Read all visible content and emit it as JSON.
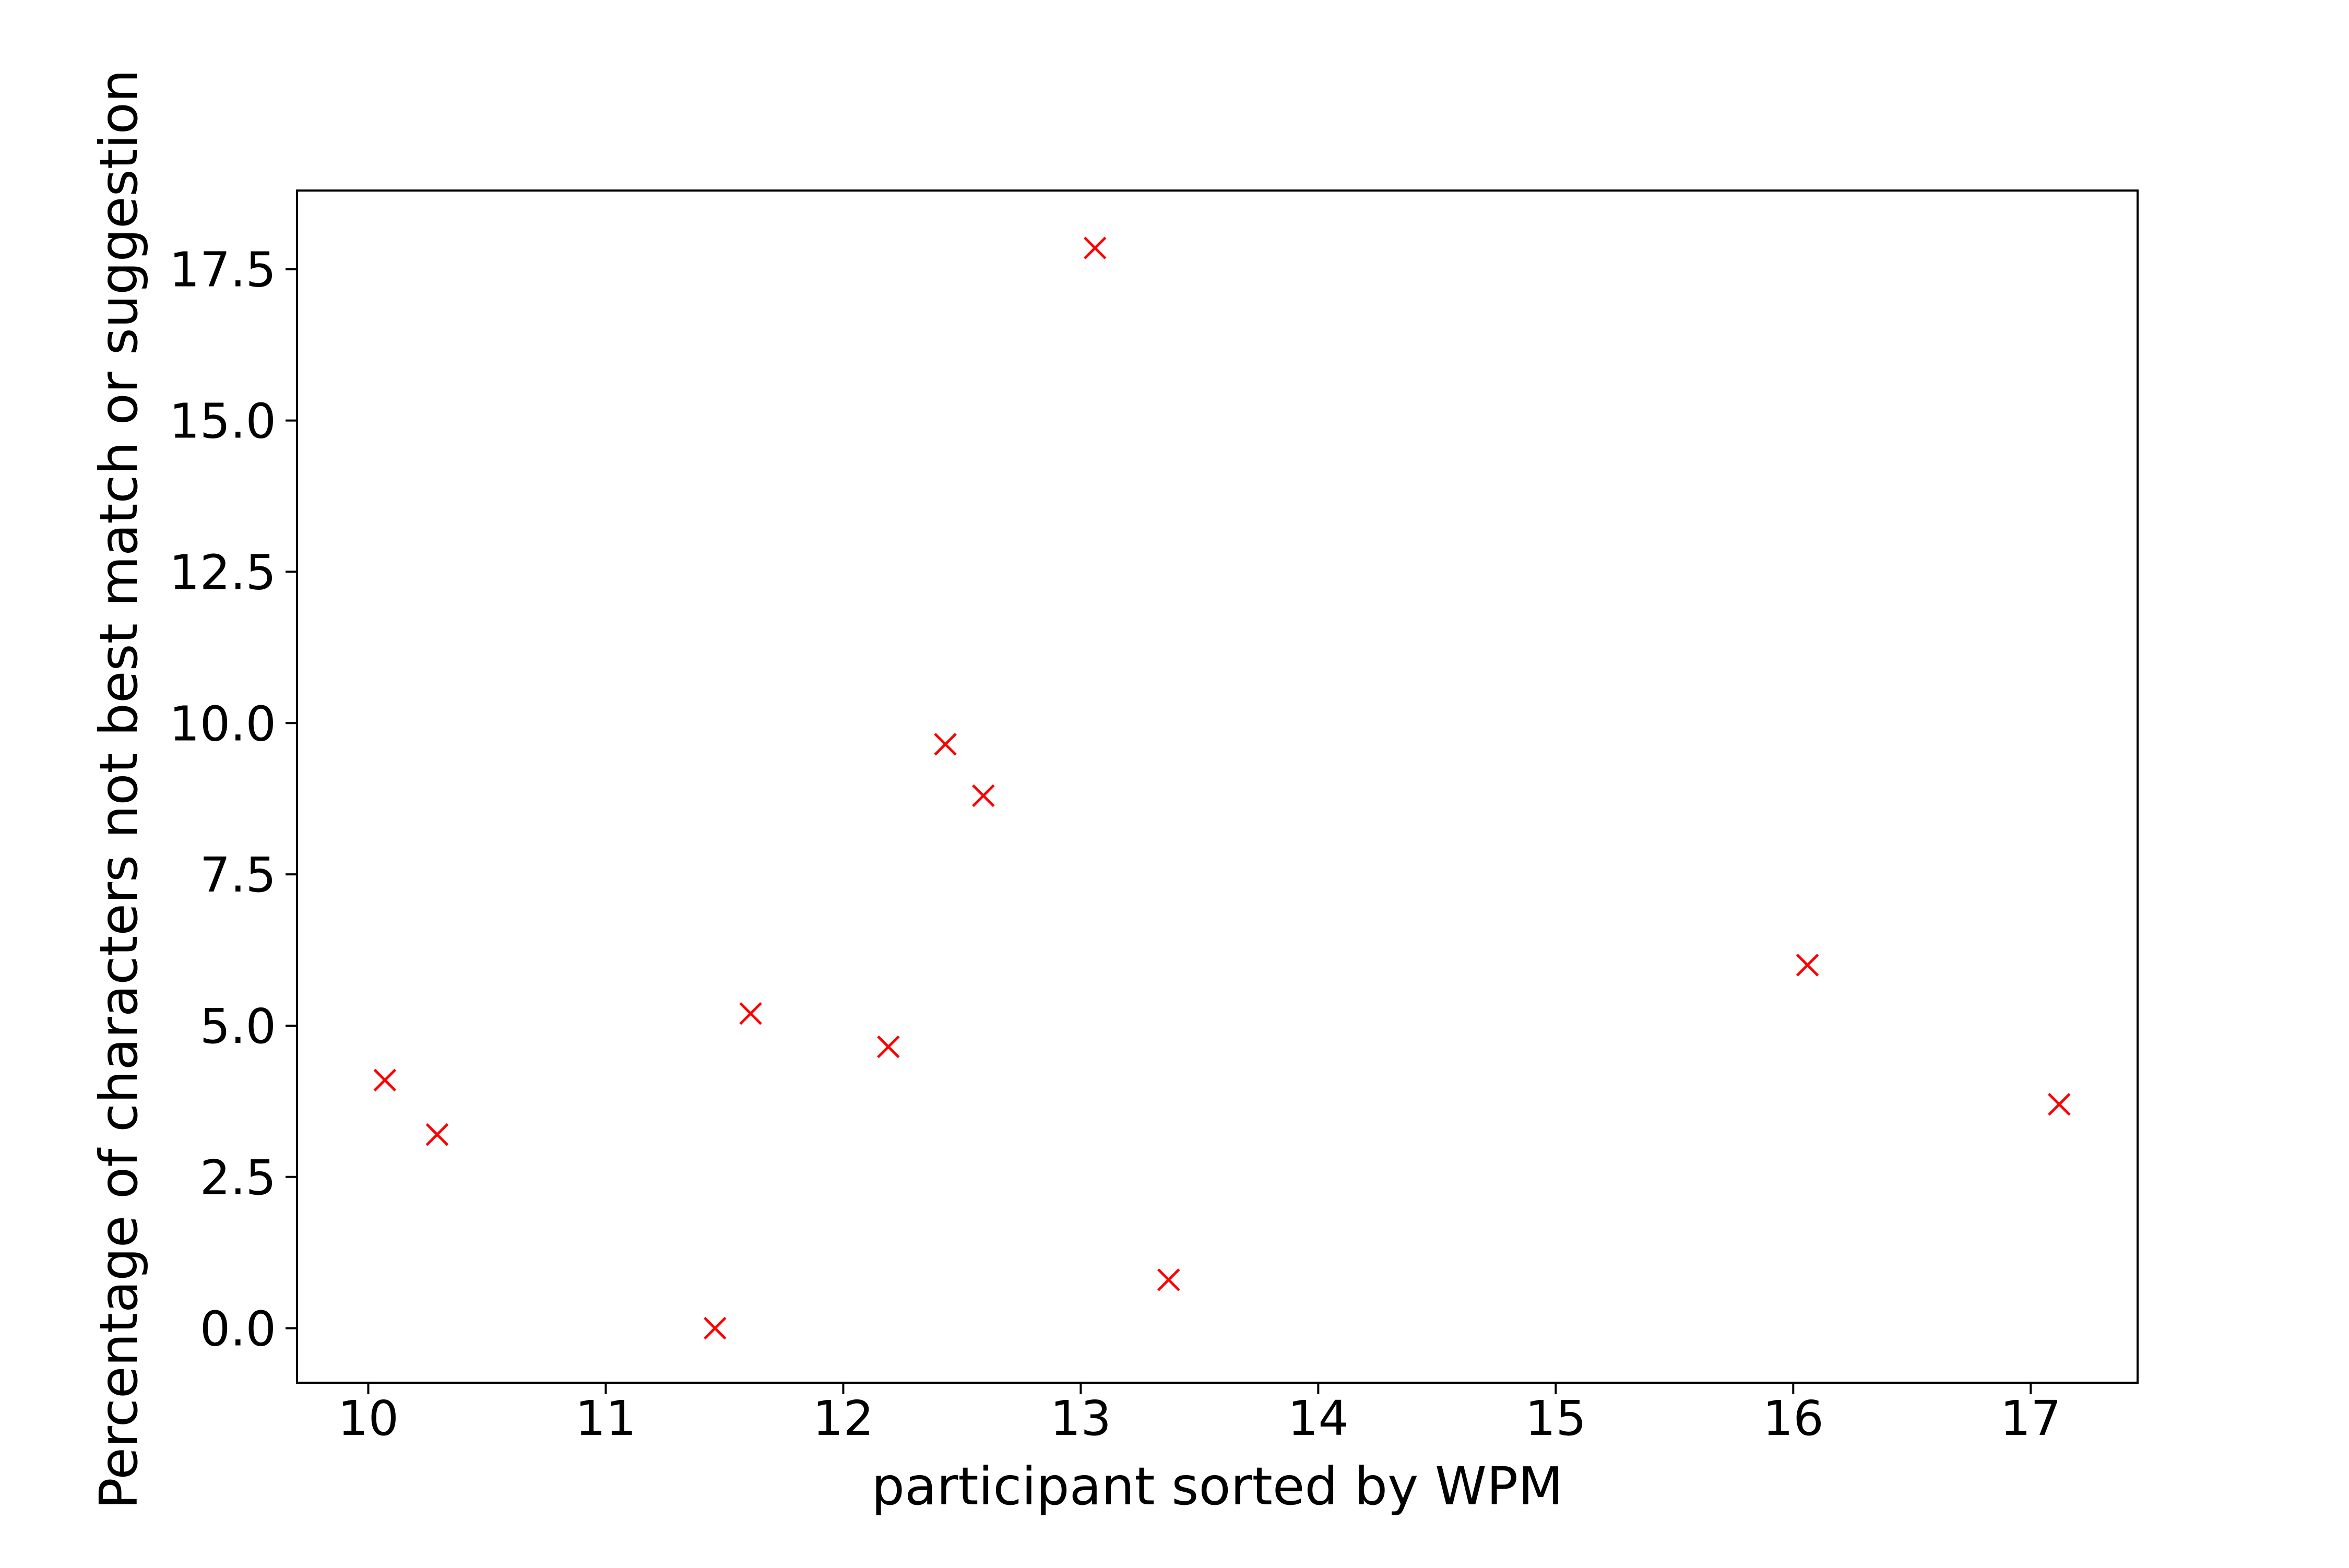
{
  "chart_data": {
    "type": "scatter",
    "title": "",
    "xlabel": "participant sorted by WPM",
    "ylabel": "Percentage of characters not best match or suggestion",
    "xlim": [
      9.7,
      17.45
    ],
    "ylim": [
      -0.9,
      18.8
    ],
    "xticks": [
      10,
      11,
      12,
      13,
      14,
      15,
      16,
      17
    ],
    "xtick_labels": [
      "10",
      "11",
      "12",
      "13",
      "14",
      "15",
      "16",
      "17"
    ],
    "yticks": [
      0.0,
      2.5,
      5.0,
      7.5,
      10.0,
      12.5,
      15.0,
      17.5
    ],
    "ytick_labels": [
      "0.0",
      "2.5",
      "5.0",
      "7.5",
      "10.0",
      "12.5",
      "15.0",
      "17.5"
    ],
    "grid": false,
    "legend": "none",
    "marker": "x",
    "marker_color": "#ff0000",
    "series": [
      {
        "x": [
          10.07,
          10.29,
          11.46,
          11.61,
          12.19,
          12.43,
          12.59,
          13.06,
          13.37,
          16.06,
          17.12
        ],
        "y": [
          4.1,
          3.2,
          0.0,
          5.2,
          4.65,
          9.65,
          8.8,
          17.85,
          0.8,
          6.0,
          3.7
        ]
      }
    ]
  }
}
